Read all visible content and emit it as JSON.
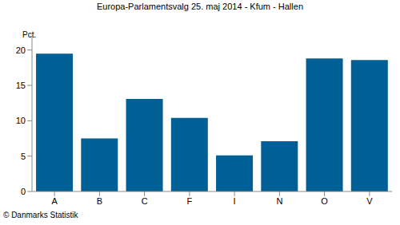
{
  "chart_data": {
    "type": "bar",
    "title": "Europa-Parlamentsvalg 25. maj 2014 - Kfum - Hallen",
    "y_label": "Pct.",
    "source": "© Danmarks Statistik",
    "categories": [
      "A",
      "B",
      "C",
      "F",
      "I",
      "N",
      "O",
      "V"
    ],
    "values": [
      19.5,
      7.5,
      13.1,
      10.4,
      5.1,
      7.1,
      18.8,
      18.6
    ],
    "color": "#005f94",
    "ylim": [
      0,
      22
    ],
    "yticks": [
      0,
      5,
      10,
      15,
      20
    ],
    "grid": false
  }
}
